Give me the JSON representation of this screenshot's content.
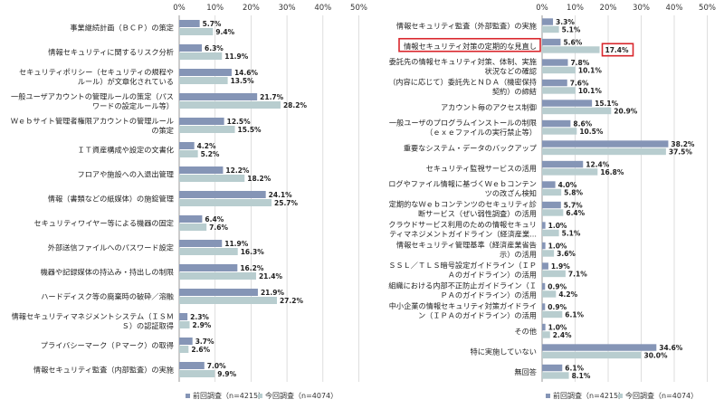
{
  "colors": {
    "prev": "#8595b6",
    "curr": "#b8cdcf",
    "highlight": "#d9262c"
  },
  "chart_data": [
    {
      "type": "bar",
      "orientation": "horizontal",
      "xlim": [
        0,
        50
      ],
      "ticks": [
        "0%",
        "10%",
        "20%",
        "30%",
        "40%",
        "50%"
      ],
      "legend": [
        "前回調査（n=4215）",
        "今回調査（n=4074）"
      ],
      "legend_position": "bottom",
      "categories": [
        [
          "事業継続計画（ＢＣＰ）の策定"
        ],
        [
          "情報セキュリティに関するリスク分析"
        ],
        [
          "セキュリティポリシー（セキュリティの規程や",
          "ルール）が文章化されている"
        ],
        [
          "一般ユーザアカウントの管理ルールの策定（パス",
          "ワードの設定ルール等）"
        ],
        [
          "Ｗｅｂサイト管理者権限アカウントの管理ルール",
          "の策定"
        ],
        [
          "ＩＴ資産構成や設定の文書化"
        ],
        [
          "フロアや施設への入退出管理"
        ],
        [
          "情報（書類などの紙媒体）の施錠管理"
        ],
        [
          "セキュリティワイヤー等による機器の固定"
        ],
        [
          "外部送信ファイルへのパスワード設定"
        ],
        [
          "機器や記録媒体の持込み・持出しの制限"
        ],
        [
          "ハードディスク等の廃棄時の破砕／溶融"
        ],
        [
          "情報セキュリティマネジメントシステム（ＩＳＭ",
          "Ｓ）の認証取得"
        ],
        [
          "プライバシーマーク（Ｐマーク）の取得"
        ],
        [
          "情報セキュリティ監査（内部監査）の実施"
        ]
      ],
      "series": [
        {
          "name": "前回調査（n=4215）",
          "values": [
            5.7,
            6.3,
            14.6,
            21.7,
            12.5,
            4.2,
            12.2,
            24.1,
            6.4,
            11.9,
            16.2,
            21.9,
            2.3,
            3.7,
            7.0
          ],
          "labels": [
            "5.7%",
            "6.3%",
            "14.6%",
            "21.7%",
            "12.5%",
            "4.2%",
            "12.2%",
            "24.1%",
            "6.4%",
            "11.9%",
            "16.2%",
            "21.9%",
            "2.3%",
            "3.7%",
            "7.0%"
          ]
        },
        {
          "name": "今回調査（n=4074）",
          "values": [
            9.4,
            11.9,
            13.5,
            28.2,
            15.5,
            5.2,
            18.2,
            25.7,
            7.6,
            16.3,
            21.4,
            27.2,
            2.9,
            2.6,
            9.9
          ],
          "labels": [
            "9.4%",
            "11.9%",
            "13.5%",
            "28.2%",
            "15.5%",
            "5.2%",
            "18.2%",
            "25.7%",
            "7.6%",
            "16.3%",
            "21.4%",
            "27.2%",
            "2.9%",
            "2.6%",
            "9.9%"
          ]
        }
      ]
    },
    {
      "type": "bar",
      "orientation": "horizontal",
      "xlim": [
        0,
        50
      ],
      "ticks": [
        "0%",
        "10%",
        "20%",
        "30%",
        "40%",
        "50%"
      ],
      "legend": [
        "前回調査（n=4215）",
        "今回調査（n=4074）"
      ],
      "legend_position": "bottom",
      "highlight_index": 1,
      "categories": [
        [
          "情報セキュリティ監査（外部監査）の実施"
        ],
        [
          "情報セキュリティ対策の定期的な見直し"
        ],
        [
          "委託先の情報セキュリティ対策、体制、実施",
          "状況などの確認"
        ],
        [
          "（内容に応じて）委託先とＮＤＡ（機密保持",
          "契約）の締結"
        ],
        [
          "アカウント毎のアクセス制御"
        ],
        [
          "一般ユーザのプログラムインストールの制限",
          "（ｅｘｅファイルの実行禁止等）"
        ],
        [
          "重要なシステム・データのバックアップ"
        ],
        [
          "セキュリティ監視サービスの活用"
        ],
        [
          "ログやファイル情報に基づくＷｅｂコンテン",
          "ツの改ざん検知"
        ],
        [
          "定期的なＷｅｂコンテンツのセキュリティ診",
          "断サービス（ぜい弱性調査）の活用"
        ],
        [
          "クラウドサービス利用のための情報セキュリ",
          "ティマネジメントガイドライン（経済産業..."
        ],
        [
          "情報セキュリティ管理基準（経済産業省告",
          "示）の活用"
        ],
        [
          "ＳＳＬ／ＴＬＳ暗号設定ガイドライン（ＩＰ",
          "Ａのガイドライン）の活用"
        ],
        [
          "組織における内部不正防止ガイドライン（Ｉ",
          "ＰＡのガイドライン）の活用"
        ],
        [
          "中小企業の情報セキュリティ対策ガイドライ",
          "ン（ＩＰＡのガイドライン）の活用"
        ],
        [
          "その他"
        ],
        [
          "特に実施していない"
        ],
        [
          "無回答"
        ]
      ],
      "series": [
        {
          "name": "前回調査（n=4215）",
          "values": [
            3.3,
            5.6,
            7.8,
            7.6,
            15.1,
            8.6,
            38.2,
            12.4,
            4.0,
            5.7,
            1.0,
            1.0,
            1.9,
            0.9,
            0.9,
            1.0,
            34.6,
            6.1
          ],
          "labels": [
            "3.3%",
            "5.6%",
            "7.8%",
            "7.6%",
            "15.1%",
            "8.6%",
            "38.2%",
            "12.4%",
            "4.0%",
            "5.7%",
            "1.0%",
            "1.0%",
            "1.9%",
            "0.9%",
            "0.9%",
            "1.0%",
            "34.6%",
            "6.1%"
          ]
        },
        {
          "name": "今回調査（n=4074）",
          "values": [
            5.1,
            17.4,
            10.1,
            10.1,
            20.9,
            10.5,
            37.5,
            16.8,
            5.8,
            6.4,
            5.1,
            3.6,
            7.1,
            4.2,
            6.1,
            2.4,
            30.0,
            8.1
          ],
          "labels": [
            "5.1%",
            "17.4%",
            "10.1%",
            "10.1%",
            "20.9%",
            "10.5%",
            "37.5%",
            "16.8%",
            "5.8%",
            "6.4%",
            "5.1%",
            "3.6%",
            "7.1%",
            "4.2%",
            "6.1%",
            "2.4%",
            "30.0%",
            "8.1%"
          ]
        }
      ]
    }
  ]
}
